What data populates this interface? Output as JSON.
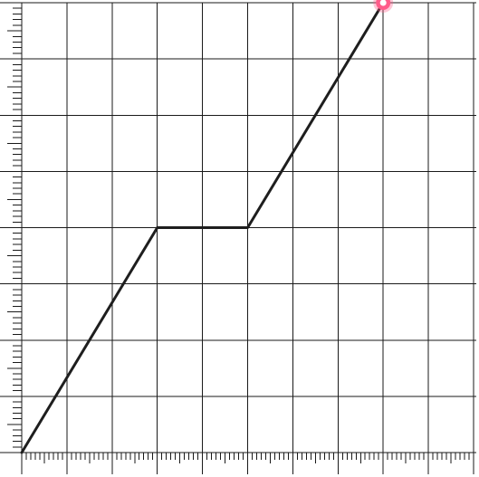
{
  "chart_data": {
    "type": "line",
    "title": "",
    "xlabel": "",
    "ylabel": "",
    "xlim": [
      0,
      10
    ],
    "ylim": [
      0,
      8
    ],
    "grid": true,
    "minor_ticks_per_major": 10,
    "series": [
      {
        "x": [
          0,
          3,
          5,
          8
        ],
        "y": [
          0,
          4,
          4,
          8
        ],
        "color": "#1e1e1e"
      }
    ],
    "highlight_point": {
      "x": 8,
      "y": 8,
      "color": "#ff5c8a"
    }
  }
}
